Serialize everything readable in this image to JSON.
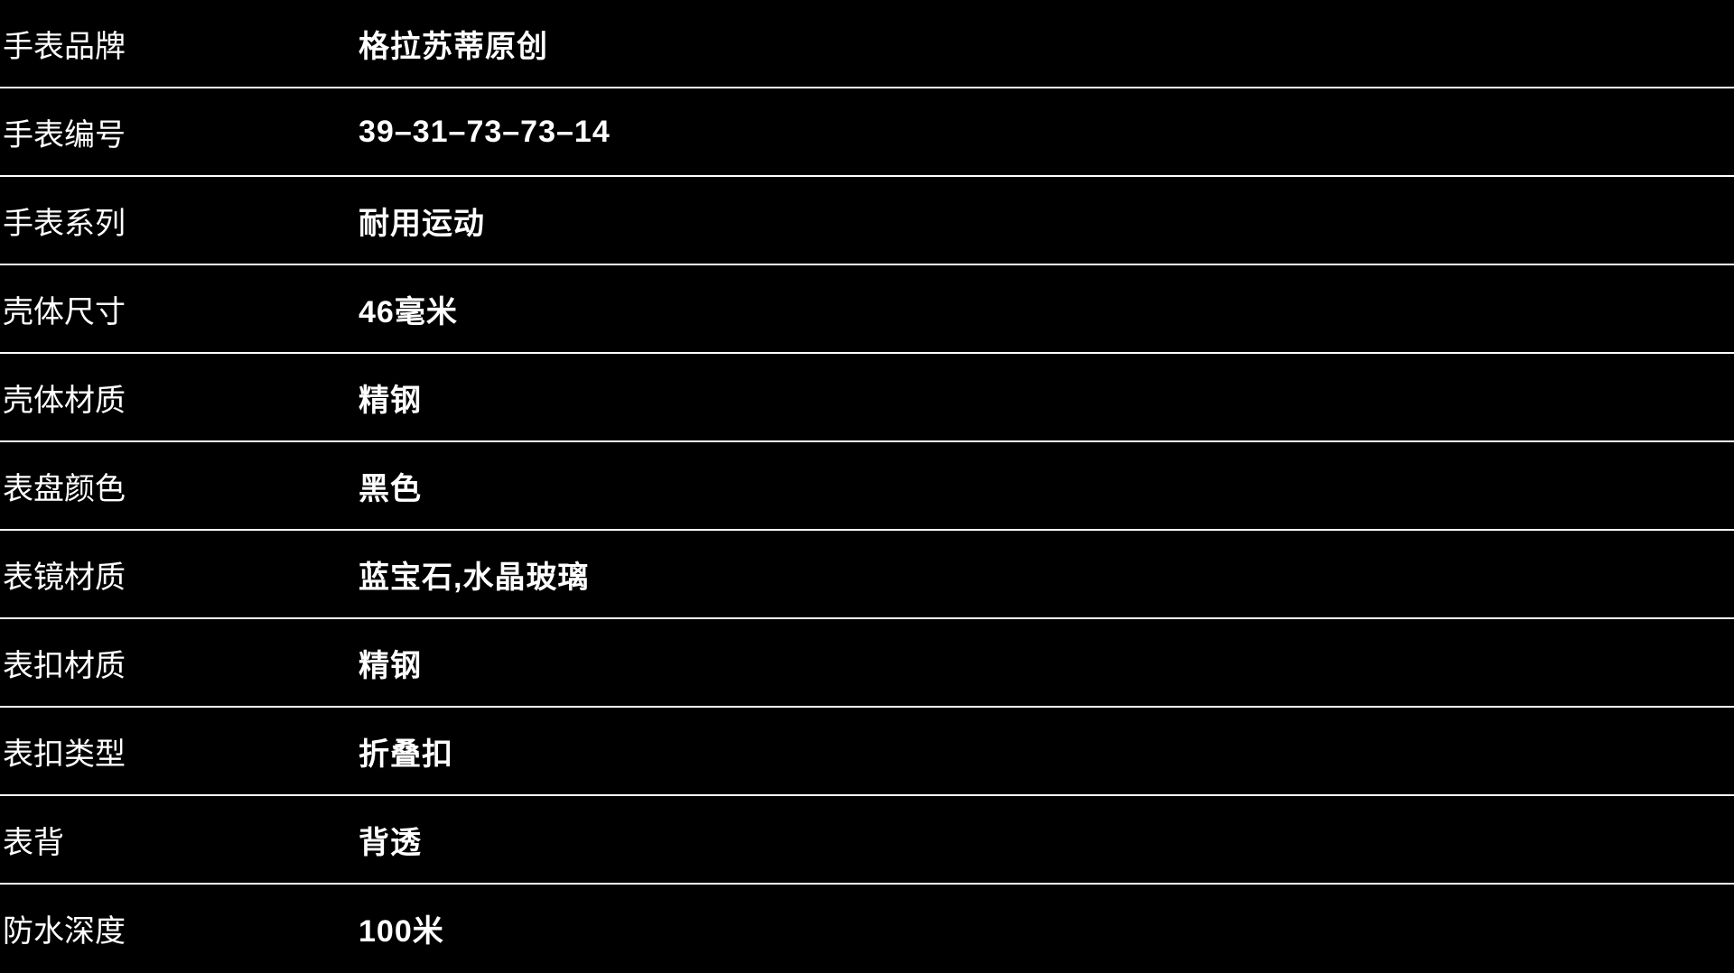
{
  "table": {
    "rows": [
      {
        "label": "手表品牌",
        "value": "格拉苏蒂原创"
      },
      {
        "label": "手表编号",
        "value": "39–31–73–73–14"
      },
      {
        "label": "手表系列",
        "value": "耐用运动"
      },
      {
        "label": "壳体尺寸",
        "value": "46毫米"
      },
      {
        "label": "壳体材质",
        "value": "精钢"
      },
      {
        "label": "表盘颜色",
        "value": "黑色"
      },
      {
        "label": "表镜材质",
        "value": "蓝宝石,水晶玻璃"
      },
      {
        "label": "表扣材质",
        "value": "精钢"
      },
      {
        "label": "表扣类型",
        "value": "折叠扣"
      },
      {
        "label": "表背",
        "value": "背透"
      },
      {
        "label": "防水深度",
        "value": "100米"
      }
    ],
    "colors": {
      "background": "#000000",
      "text": "#ffffff",
      "divider": "#ffffff"
    }
  }
}
